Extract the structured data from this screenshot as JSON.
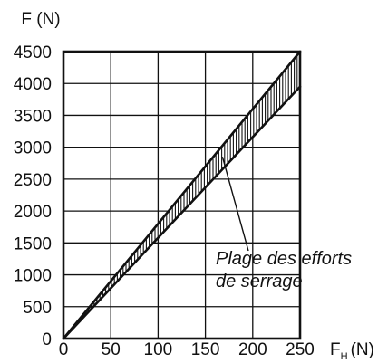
{
  "chart_data": {
    "type": "area",
    "title": "",
    "ylabel": "F (N)",
    "xlabel": {
      "main": "F",
      "subscript": "H",
      "unit": "(N)"
    },
    "xlim": [
      0,
      250
    ],
    "ylim": [
      0,
      4500
    ],
    "x_ticks": [
      0,
      50,
      100,
      150,
      200,
      250
    ],
    "y_ticks": [
      0,
      500,
      1000,
      1500,
      2000,
      2500,
      3000,
      3500,
      4000,
      4500
    ],
    "grid": true,
    "series": [
      {
        "x": [
          0,
          250
        ],
        "y": [
          0,
          4500
        ]
      },
      {
        "x": [
          0,
          250
        ],
        "y": [
          0,
          3950
        ]
      }
    ],
    "band_fill": "vertical-hatch",
    "annotation": {
      "lines": [
        "Plage des efforts",
        "de serrage"
      ],
      "points_to": {
        "x": 168,
        "y": 2850
      }
    },
    "colors": {
      "line": "#111111",
      "grid": "#111111",
      "background": "#ffffff"
    }
  }
}
